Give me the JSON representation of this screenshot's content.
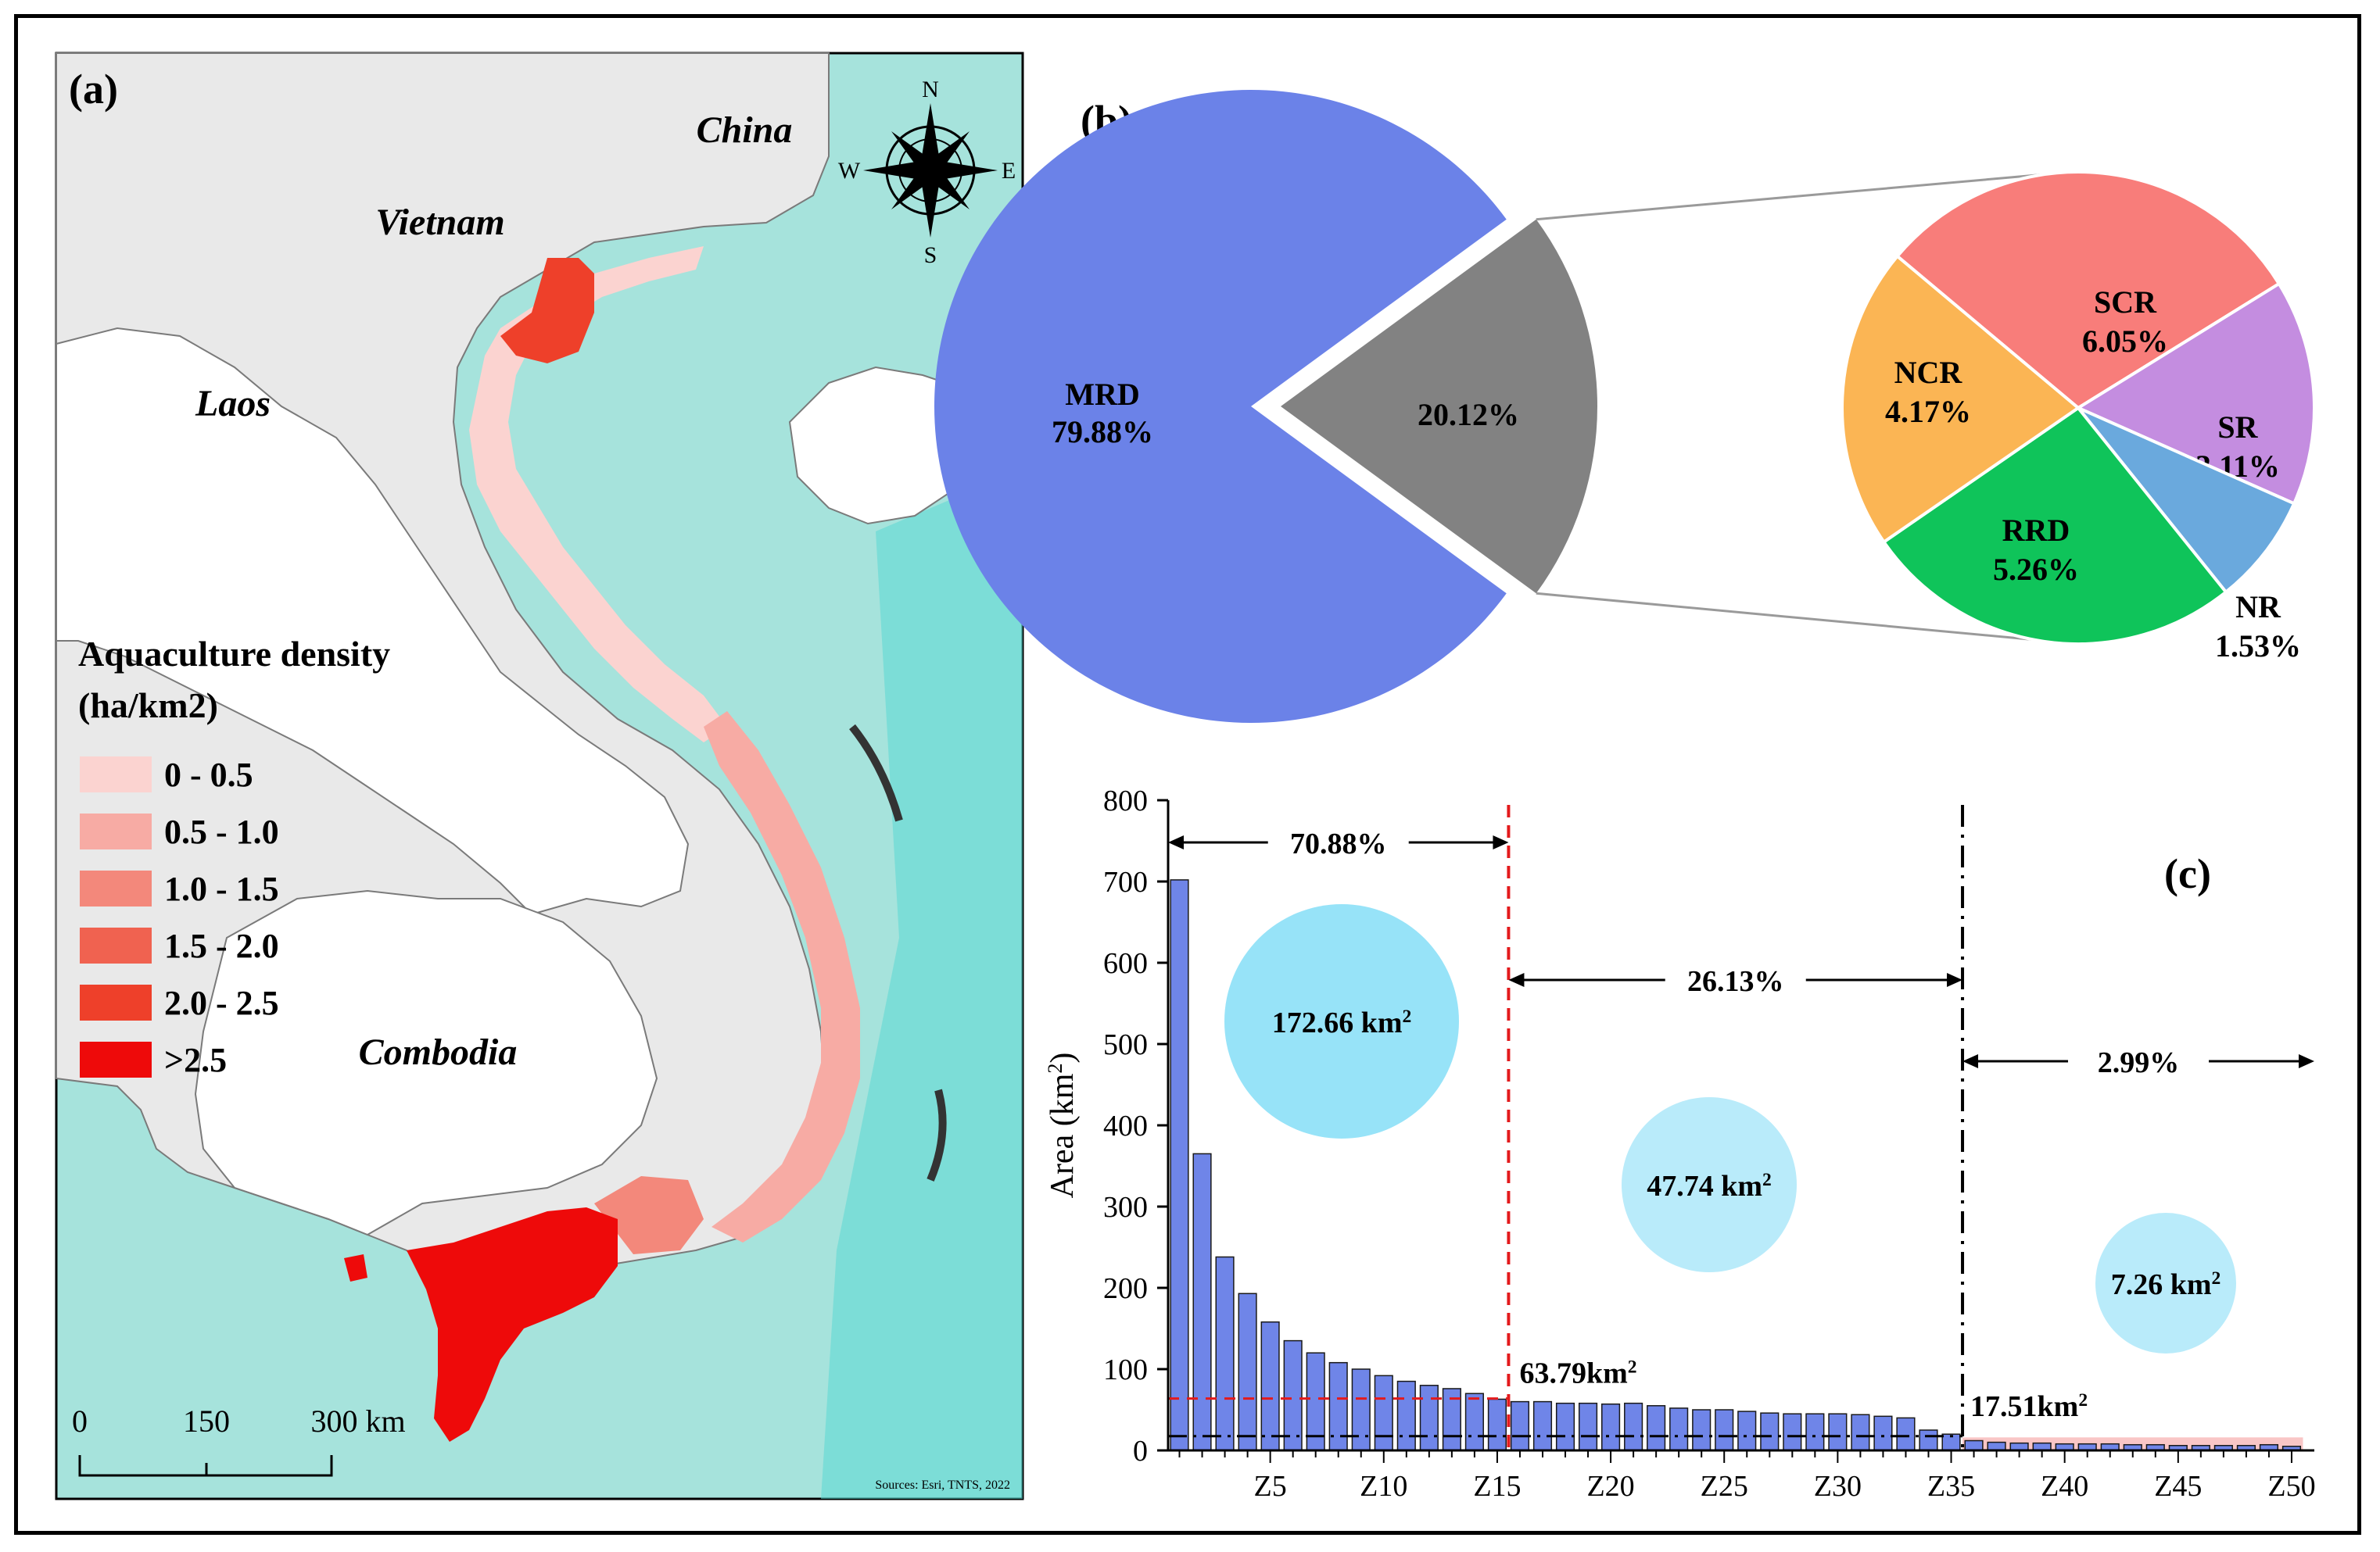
{
  "figure": {
    "panel_a_label": "(a)",
    "panel_b_label": "(b)",
    "panel_c_label": "(c)"
  },
  "map": {
    "countries": [
      "China",
      "Vietnam",
      "Laos",
      "Combodia"
    ],
    "compass": {
      "n": "N",
      "s": "S",
      "e": "E",
      "w": "W"
    },
    "legend_title_line1": "Aquaculture density",
    "legend_title_line2": "(ha/km2)",
    "legend": [
      {
        "label": "0 - 0.5",
        "color": "#fbd3d0"
      },
      {
        "label": "0.5 - 1.0",
        "color": "#f7aba4"
      },
      {
        "label": "1.0 - 1.5",
        "color": "#f3887b"
      },
      {
        "label": "1.5 - 2.0",
        "color": "#f06250"
      },
      {
        "label": "2.0 - 2.5",
        "color": "#ee402a"
      },
      {
        "label": ">2.5",
        "color": "#ee0a0a"
      }
    ],
    "scale": {
      "t0": "0",
      "t1": "150",
      "t2": "300 km"
    },
    "attribution": "Sources: Esri, TNTS, 2022",
    "colors": {
      "land": "#e9e9e9",
      "sea": "#a6e3dc",
      "deep_sea": "#5ad8d4",
      "island": "#ffffff"
    }
  },
  "chart_data": [
    {
      "type": "pie",
      "panel": "(b)",
      "slices": [
        {
          "label": "MRD",
          "value": 79.88,
          "display": "79.88%",
          "color": "#6b82e8"
        },
        {
          "label": "",
          "value": 20.12,
          "display": "20.12%",
          "color": "#828282"
        }
      ],
      "breakdown": [
        {
          "label": "SCR",
          "value": 6.05,
          "display": "6.05%",
          "color": "#f87d7a"
        },
        {
          "label": "SR",
          "value": 3.11,
          "display": "3.11%",
          "color": "#c48de0"
        },
        {
          "label": "NR",
          "value": 1.53,
          "display": "1.53%",
          "color": "#6aa9dd"
        },
        {
          "label": "RRD",
          "value": 5.26,
          "display": "5.26%",
          "color": "#0fc45a"
        },
        {
          "label": "NCR",
          "value": 4.17,
          "display": "4.17%",
          "color": "#fbb554"
        }
      ]
    },
    {
      "type": "bar",
      "panel": "(c)",
      "ylabel": "Area (km²)",
      "ylim": [
        0,
        800
      ],
      "yticks": [
        0,
        100,
        200,
        300,
        400,
        500,
        600,
        700,
        800
      ],
      "xtick_labels": [
        "Z5",
        "Z10",
        "Z15",
        "Z20",
        "Z25",
        "Z30",
        "Z35",
        "Z40",
        "Z45",
        "Z50"
      ],
      "xtick_positions": [
        5,
        10,
        15,
        20,
        25,
        30,
        35,
        40,
        45,
        50
      ],
      "categories": [
        "Z1",
        "Z2",
        "Z3",
        "Z4",
        "Z5",
        "Z6",
        "Z7",
        "Z8",
        "Z9",
        "Z10",
        "Z11",
        "Z12",
        "Z13",
        "Z14",
        "Z15",
        "Z16",
        "Z17",
        "Z18",
        "Z19",
        "Z20",
        "Z21",
        "Z22",
        "Z23",
        "Z24",
        "Z25",
        "Z26",
        "Z27",
        "Z28",
        "Z29",
        "Z30",
        "Z31",
        "Z32",
        "Z33",
        "Z34",
        "Z35",
        "Z36",
        "Z37",
        "Z38",
        "Z39",
        "Z40",
        "Z41",
        "Z42",
        "Z43",
        "Z44",
        "Z45",
        "Z46",
        "Z47",
        "Z48",
        "Z49",
        "Z50"
      ],
      "values": [
        702,
        365,
        238,
        193,
        158,
        135,
        120,
        108,
        100,
        92,
        85,
        80,
        76,
        70,
        63,
        60,
        60,
        58,
        58,
        57,
        58,
        55,
        52,
        50,
        50,
        48,
        46,
        45,
        45,
        45,
        44,
        42,
        40,
        25,
        20,
        12,
        10,
        9,
        9,
        8,
        8,
        8,
        7,
        7,
        6,
        6,
        6,
        6,
        7,
        5
      ],
      "bar_color": "#6f85e8",
      "highlight_color": "#f9c6c6",
      "threshold_lines": [
        {
          "value": 63.79,
          "label": "63.79km²",
          "color": "#e31a1c"
        },
        {
          "value": 17.51,
          "label": "17.51km²",
          "color": "#000000"
        }
      ],
      "dividers": [
        15,
        35
      ],
      "segments": [
        {
          "from": 0,
          "to": 15,
          "percent": "70.88%",
          "area": "172.66 km²"
        },
        {
          "from": 15,
          "to": 35,
          "percent": "26.13%",
          "area": "47.74 km²"
        },
        {
          "from": 35,
          "to": 50.5,
          "percent": "2.99%",
          "area": "7.26 km²"
        }
      ]
    }
  ]
}
